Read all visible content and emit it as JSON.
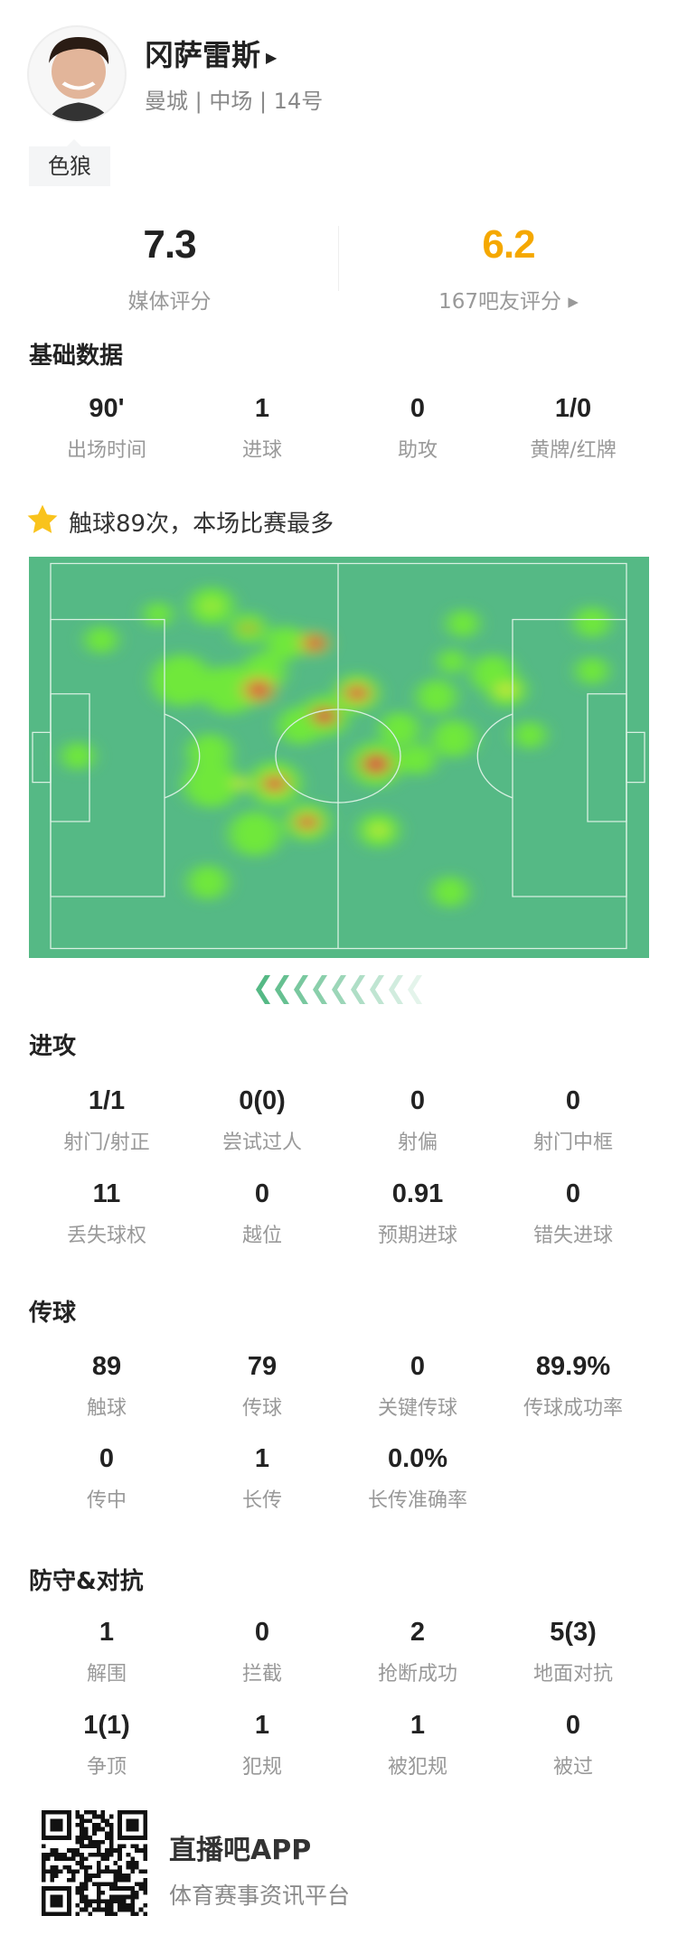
{
  "player": {
    "name": "冈萨雷斯",
    "info": "曼城 | 中场 | 14号",
    "tag": "色狼"
  },
  "ratings": {
    "media_value": "7.3",
    "media_label": "媒体评分",
    "fan_value": "6.2",
    "fan_label": "167吧友评分 ▸",
    "fan_color": "#f5a800"
  },
  "basic": {
    "title": "基础数据",
    "items": [
      {
        "v": "90'",
        "l": "出场时间"
      },
      {
        "v": "1",
        "l": "进球"
      },
      {
        "v": "0",
        "l": "助攻"
      },
      {
        "v": "1/0",
        "l": "黄牌/红牌"
      }
    ]
  },
  "highlight": {
    "icon": "star-icon",
    "text": "触球89次，本场比赛最多"
  },
  "heatmap": {
    "pitch_color": "#55b985",
    "line_color": "#d8f0e2",
    "hot_color": "#d9573f"
  },
  "attack": {
    "title": "进攻",
    "rows": [
      [
        {
          "v": "1/1",
          "l": "射门/射正"
        },
        {
          "v": "0(0)",
          "l": "尝试过人"
        },
        {
          "v": "0",
          "l": "射偏"
        },
        {
          "v": "0",
          "l": "射门中框"
        }
      ],
      [
        {
          "v": "11",
          "l": "丢失球权"
        },
        {
          "v": "0",
          "l": "越位"
        },
        {
          "v": "0.91",
          "l": "预期进球"
        },
        {
          "v": "0",
          "l": "错失进球"
        }
      ]
    ]
  },
  "passing": {
    "title": "传球",
    "rows": [
      [
        {
          "v": "89",
          "l": "触球"
        },
        {
          "v": "79",
          "l": "传球"
        },
        {
          "v": "0",
          "l": "关键传球"
        },
        {
          "v": "89.9%",
          "l": "传球成功率"
        }
      ],
      [
        {
          "v": "0",
          "l": "传中"
        },
        {
          "v": "1",
          "l": "长传"
        },
        {
          "v": "0.0%",
          "l": "长传准确率"
        }
      ]
    ]
  },
  "defense": {
    "title": "防守&对抗",
    "rows": [
      [
        {
          "v": "1",
          "l": "解围"
        },
        {
          "v": "0",
          "l": "拦截"
        },
        {
          "v": "2",
          "l": "抢断成功"
        },
        {
          "v": "5(3)",
          "l": "地面对抗"
        }
      ],
      [
        {
          "v": "1(1)",
          "l": "争顶"
        },
        {
          "v": "1",
          "l": "犯规"
        },
        {
          "v": "1",
          "l": "被犯规"
        },
        {
          "v": "0",
          "l": "被过"
        }
      ]
    ]
  },
  "footer": {
    "app": "直播吧APP",
    "slogan": "体育赛事资讯平台"
  }
}
